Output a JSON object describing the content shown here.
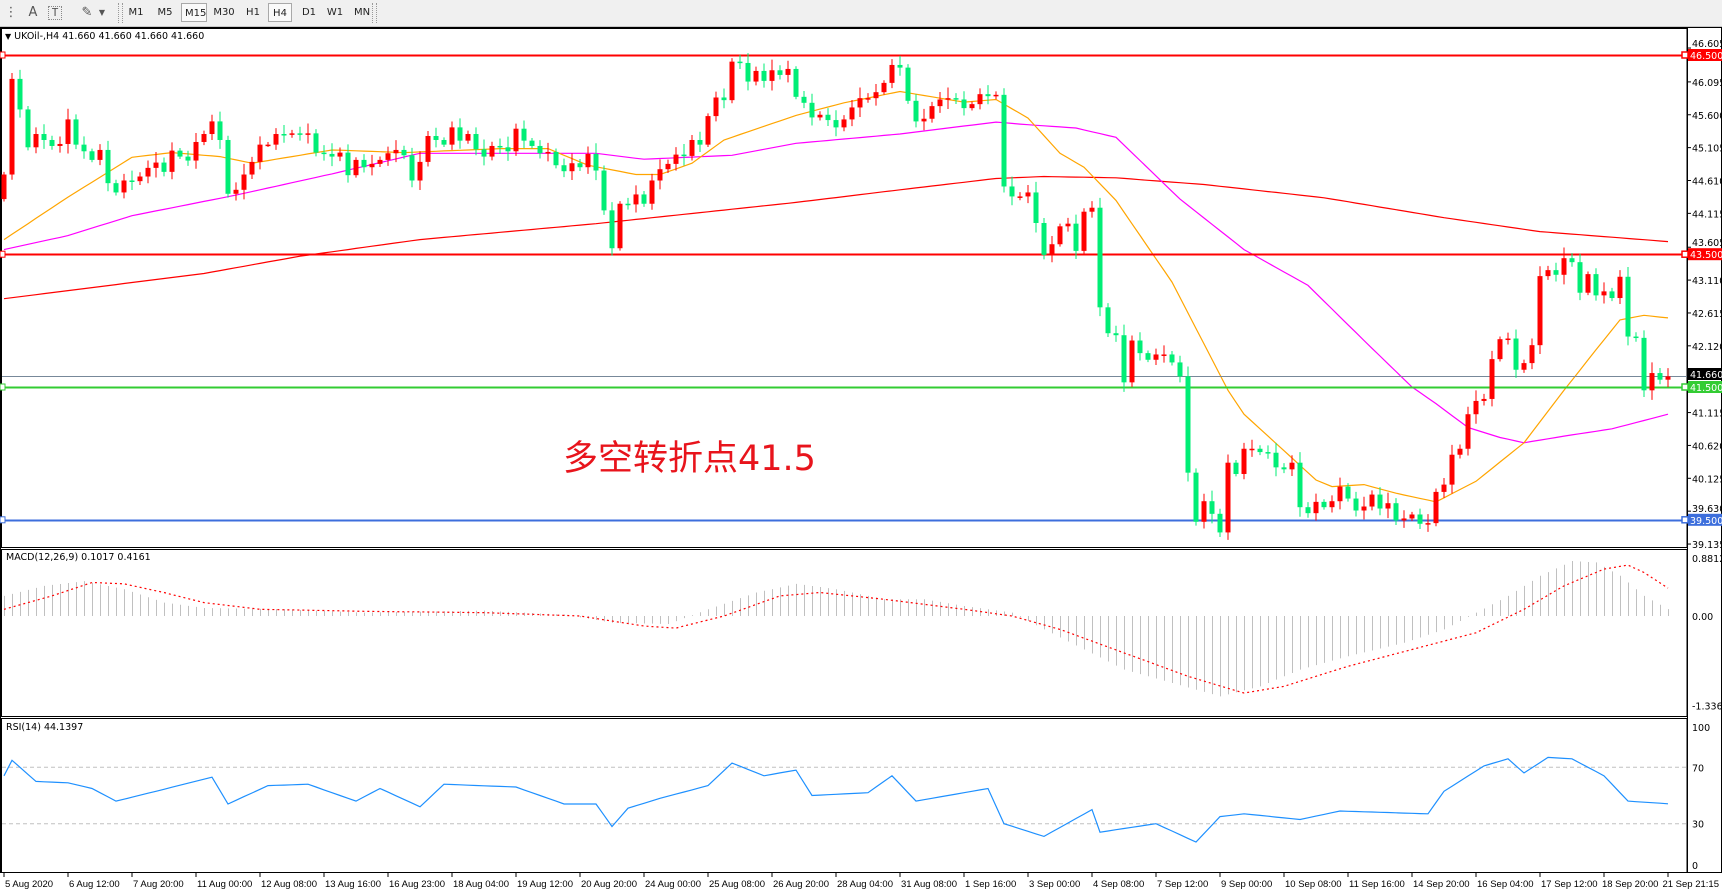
{
  "toolbar": {
    "icons": [
      "period-separator-icon",
      "text-icon",
      "text-label-icon",
      "arrows-icon",
      "dropdown-arrow-icon"
    ],
    "text_icon": "A",
    "text_label_icon": "T",
    "periods": [
      "M1",
      "M5",
      "M15",
      "M30",
      "H1",
      "H4",
      "D1",
      "W1",
      "MN"
    ],
    "active_periods": [
      "M15",
      "H4"
    ]
  },
  "chart": {
    "title": "UKOil-,H4  41.660 41.660 41.660 41.660",
    "annotation": "多空转折点41.5",
    "colors": {
      "bull": "#ff0000",
      "bear": "#00ee76",
      "ma_fast": "#ffa500",
      "ma_mid": "#ff00ff",
      "ma_slow": "#ff0000",
      "rsi": "#1e90ff",
      "macd_hist": "#c0c0c0",
      "macd_signal": "#ff0000"
    },
    "horizontal_lines": [
      {
        "price": 46.5,
        "label": "46.500",
        "color": "#ff0000"
      },
      {
        "price": 43.5,
        "label": "43.500",
        "color": "#ff0000"
      },
      {
        "price": 41.5,
        "label": "41.500",
        "color": "#33cc33"
      },
      {
        "price": 39.5,
        "label": "39.500",
        "color": "#3c6edc"
      }
    ],
    "bid_line": {
      "price": 41.66,
      "label": "41.660",
      "color": "#778899"
    },
    "price_axis": [
      "46.605",
      "46.095",
      "45.600",
      "45.105",
      "44.610",
      "44.115",
      "43.605",
      "43.110",
      "42.615",
      "42.120",
      "41.115",
      "40.620",
      "40.125",
      "39.630",
      "39.135"
    ],
    "time_axis": [
      "5 Aug 2020",
      "6 Aug 12:00",
      "7 Aug 20:00",
      "11 Aug 00:00",
      "12 Aug 08:00",
      "13 Aug 16:00",
      "16 Aug 23:00",
      "18 Aug 04:00",
      "19 Aug 12:00",
      "20 Aug 20:00",
      "24 Aug 00:00",
      "25 Aug 08:00",
      "26 Aug 20:00",
      "28 Aug 04:00",
      "31 Aug 08:00",
      "1 Sep 16:00",
      "3 Sep 00:00",
      "4 Sep 08:00",
      "7 Sep 12:00",
      "9 Sep 00:00",
      "10 Sep 08:00",
      "11 Sep 16:00",
      "14 Sep 20:00",
      "16 Sep 04:00",
      "17 Sep 12:00",
      "18 Sep 20:00",
      "21 Sep 21:15"
    ]
  },
  "chart_data": [
    {
      "type": "candlestick",
      "symbol": "UKOil-",
      "timeframe": "H4",
      "first_open": 44.33,
      "closes": [
        44.7,
        46.14,
        45.68,
        45.11,
        45.31,
        45.22,
        45.13,
        45.16,
        45.53,
        45.15,
        45.05,
        44.92,
        45.07,
        44.57,
        44.43,
        44.61,
        44.6,
        44.67,
        44.8,
        44.88,
        44.74,
        45.06,
        44.97,
        44.91,
        45.19,
        45.31,
        45.5,
        45.22,
        44.41,
        44.47,
        44.7,
        44.89,
        45.15,
        45.15,
        45.31,
        45.3,
        45.32,
        45.3,
        45.32,
        45.03,
        45.01,
        44.97,
        45.03,
        44.69,
        44.92,
        44.81,
        44.86,
        44.92,
        45.02,
        45.07,
        44.99,
        44.61,
        44.89,
        45.28,
        45.22,
        45.15,
        45.41,
        45.21,
        45.31,
        45.08,
        44.97,
        45.13,
        45.11,
        45.05,
        45.39,
        45.21,
        45.13,
        45.02,
        45.04,
        44.84,
        44.75,
        44.87,
        44.81,
        45.01,
        44.76,
        44.16,
        43.59,
        44.26,
        44.25,
        44.4,
        44.26,
        44.61,
        44.78,
        44.86,
        45.0,
        44.98,
        45.22,
        45.15,
        45.58,
        45.86,
        45.82,
        46.4,
        46.38,
        46.1,
        46.26,
        46.11,
        46.27,
        46.2,
        46.29,
        45.87,
        45.78,
        45.56,
        45.6,
        45.52,
        45.41,
        45.53,
        45.71,
        45.85,
        45.85,
        45.94,
        46.08,
        46.35,
        46.31,
        45.81,
        45.5,
        45.54,
        45.73,
        45.83,
        45.85,
        45.83,
        45.7,
        45.76,
        45.91,
        45.88,
        45.9,
        44.52,
        44.37,
        44.37,
        44.43,
        43.97,
        43.49,
        43.65,
        43.92,
        43.96,
        43.55,
        44.14,
        44.2,
        42.7,
        42.31,
        42.28,
        41.57,
        42.2,
        42.01,
        41.91,
        41.99,
        41.99,
        41.87,
        41.66,
        40.21,
        39.47,
        39.78,
        39.59,
        39.31,
        40.36,
        40.19,
        40.57,
        40.57,
        40.52,
        40.51,
        40.29,
        40.26,
        40.36,
        39.69,
        39.6,
        39.77,
        39.69,
        39.78,
        40.0,
        39.82,
        39.64,
        39.7,
        39.88,
        39.67,
        39.75,
        39.49,
        39.52,
        39.58,
        39.44,
        39.45,
        39.92,
        40.03,
        40.48,
        40.57,
        41.09,
        41.29,
        41.32,
        41.92,
        42.22,
        42.23,
        41.76,
        41.86,
        42.13,
        43.17,
        43.26,
        43.19,
        43.44,
        43.38,
        42.92,
        43.2,
        42.88,
        42.94,
        42.84,
        43.16,
        42.26,
        42.24,
        41.45,
        41.71,
        41.61,
        41.66
      ],
      "moving_averages": {
        "fast": [
          [
            0,
            43.72
          ],
          [
            8,
            44.36
          ],
          [
            16,
            44.96
          ],
          [
            21,
            45.03
          ],
          [
            27,
            44.97
          ],
          [
            31,
            44.87
          ],
          [
            41,
            45.07
          ],
          [
            50,
            45.03
          ],
          [
            62,
            45.09
          ],
          [
            68,
            45.09
          ],
          [
            73,
            44.84
          ],
          [
            79,
            44.7
          ],
          [
            82,
            44.7
          ],
          [
            86,
            44.87
          ],
          [
            90,
            45.22
          ],
          [
            99,
            45.59
          ],
          [
            105,
            45.78
          ],
          [
            112,
            45.95
          ],
          [
            120,
            45.79
          ],
          [
            124,
            45.83
          ],
          [
            128,
            45.55
          ],
          [
            132,
            45.02
          ],
          [
            135,
            44.81
          ],
          [
            139,
            44.31
          ],
          [
            146,
            43.08
          ],
          [
            153,
            41.45
          ],
          [
            155,
            41.09
          ],
          [
            158,
            40.76
          ],
          [
            164,
            40.1
          ],
          [
            166,
            40.0
          ],
          [
            170,
            40.03
          ],
          [
            174,
            39.9
          ],
          [
            179,
            39.77
          ],
          [
            184,
            40.08
          ],
          [
            190,
            40.66
          ],
          [
            195,
            41.45
          ],
          [
            199,
            42.06
          ],
          [
            202,
            42.51
          ],
          [
            205,
            42.58
          ],
          [
            208,
            42.54
          ]
        ],
        "mid": [
          [
            0,
            43.57
          ],
          [
            8,
            43.78
          ],
          [
            16,
            44.08
          ],
          [
            29,
            44.39
          ],
          [
            41,
            44.71
          ],
          [
            52,
            45.02
          ],
          [
            74,
            45.02
          ],
          [
            80,
            44.93
          ],
          [
            91,
            44.99
          ],
          [
            99,
            45.17
          ],
          [
            112,
            45.31
          ],
          [
            118,
            45.4
          ],
          [
            124,
            45.49
          ],
          [
            128,
            45.45
          ],
          [
            134,
            45.4
          ],
          [
            139,
            45.26
          ],
          [
            147,
            44.33
          ],
          [
            155,
            43.57
          ],
          [
            163,
            43.03
          ],
          [
            170,
            42.2
          ],
          [
            176,
            41.5
          ],
          [
            179,
            41.25
          ],
          [
            183,
            40.89
          ],
          [
            187,
            40.74
          ],
          [
            190,
            40.66
          ],
          [
            195,
            40.76
          ],
          [
            201,
            40.87
          ],
          [
            208,
            41.09
          ]
        ],
        "slow": [
          [
            0,
            42.83
          ],
          [
            25,
            43.21
          ],
          [
            37,
            43.47
          ],
          [
            52,
            43.72
          ],
          [
            74,
            43.96
          ],
          [
            99,
            44.28
          ],
          [
            112,
            44.47
          ],
          [
            124,
            44.64
          ],
          [
            130,
            44.67
          ],
          [
            139,
            44.65
          ],
          [
            150,
            44.55
          ],
          [
            165,
            44.35
          ],
          [
            180,
            44.05
          ],
          [
            192,
            43.84
          ],
          [
            208,
            43.69
          ]
        ]
      },
      "ylim": [
        39.135,
        46.605
      ]
    },
    {
      "type": "bar",
      "label": "MACD(12,26,9) 0.1017 0.4161",
      "axis_labels": [
        "0.8812",
        "0.00",
        "-1.3368"
      ],
      "ylim": [
        -1.3368,
        0.8812
      ],
      "histogram": [
        [
          0,
          0.3
        ],
        [
          5,
          0.45
        ],
        [
          10,
          0.52
        ],
        [
          15,
          0.4
        ],
        [
          20,
          0.2
        ],
        [
          25,
          0.12
        ],
        [
          35,
          0.1
        ],
        [
          45,
          0.05
        ],
        [
          60,
          0.08
        ],
        [
          70,
          0.02
        ],
        [
          76,
          -0.1
        ],
        [
          83,
          -0.12
        ],
        [
          88,
          0.1
        ],
        [
          94,
          0.35
        ],
        [
          99,
          0.48
        ],
        [
          104,
          0.4
        ],
        [
          110,
          0.25
        ],
        [
          115,
          0.25
        ],
        [
          120,
          0.15
        ],
        [
          126,
          0.05
        ],
        [
          130,
          -0.2
        ],
        [
          135,
          -0.5
        ],
        [
          140,
          -0.8
        ],
        [
          146,
          -1.0
        ],
        [
          152,
          -1.2
        ],
        [
          157,
          -1.05
        ],
        [
          162,
          -0.8
        ],
        [
          168,
          -0.6
        ],
        [
          175,
          -0.4
        ],
        [
          180,
          -0.2
        ],
        [
          184,
          0.05
        ],
        [
          188,
          0.3
        ],
        [
          192,
          0.6
        ],
        [
          196,
          0.82
        ],
        [
          199,
          0.8
        ],
        [
          202,
          0.6
        ],
        [
          205,
          0.3
        ],
        [
          208,
          0.1017
        ]
      ],
      "signal": [
        [
          0,
          0.1
        ],
        [
          6,
          0.3
        ],
        [
          11,
          0.5
        ],
        [
          15,
          0.48
        ],
        [
          20,
          0.35
        ],
        [
          25,
          0.2
        ],
        [
          32,
          0.1
        ],
        [
          45,
          0.07
        ],
        [
          60,
          0.05
        ],
        [
          72,
          0.0
        ],
        [
          80,
          -0.15
        ],
        [
          84,
          -0.18
        ],
        [
          90,
          0.0
        ],
        [
          97,
          0.3
        ],
        [
          102,
          0.35
        ],
        [
          110,
          0.25
        ],
        [
          120,
          0.1
        ],
        [
          126,
          0.0
        ],
        [
          132,
          -0.2
        ],
        [
          140,
          -0.55
        ],
        [
          148,
          -0.9
        ],
        [
          155,
          -1.15
        ],
        [
          160,
          -1.05
        ],
        [
          168,
          -0.75
        ],
        [
          176,
          -0.5
        ],
        [
          184,
          -0.25
        ],
        [
          190,
          0.1
        ],
        [
          195,
          0.45
        ],
        [
          200,
          0.7
        ],
        [
          203,
          0.76
        ],
        [
          205,
          0.65
        ],
        [
          208,
          0.4161
        ]
      ]
    },
    {
      "type": "line",
      "label": "RSI(14) 44.1397",
      "axis_labels": [
        "100",
        "70",
        "30",
        "0"
      ],
      "levels": [
        70,
        30
      ],
      "ylim": [
        0,
        100
      ],
      "values": [
        [
          0,
          64
        ],
        [
          1,
          75
        ],
        [
          4,
          60
        ],
        [
          8,
          59
        ],
        [
          11,
          55
        ],
        [
          14,
          46
        ],
        [
          19,
          53
        ],
        [
          26,
          63
        ],
        [
          28,
          44
        ],
        [
          33,
          57
        ],
        [
          38,
          58
        ],
        [
          44,
          46
        ],
        [
          47,
          55
        ],
        [
          52,
          42
        ],
        [
          55,
          58
        ],
        [
          64,
          56
        ],
        [
          70,
          44
        ],
        [
          74,
          44
        ],
        [
          76,
          28
        ],
        [
          78,
          41
        ],
        [
          82,
          48
        ],
        [
          88,
          57
        ],
        [
          91,
          73
        ],
        [
          95,
          64
        ],
        [
          99,
          68
        ],
        [
          101,
          50
        ],
        [
          108,
          52
        ],
        [
          111,
          64
        ],
        [
          114,
          46
        ],
        [
          123,
          55
        ],
        [
          125,
          30
        ],
        [
          130,
          21
        ],
        [
          136,
          40
        ],
        [
          137,
          24
        ],
        [
          144,
          30
        ],
        [
          149,
          17
        ],
        [
          152,
          35
        ],
        [
          155,
          37
        ],
        [
          162,
          33
        ],
        [
          167,
          39
        ],
        [
          178,
          37
        ],
        [
          180,
          53
        ],
        [
          185,
          71
        ],
        [
          188,
          76
        ],
        [
          190,
          66
        ],
        [
          193,
          77
        ],
        [
          196,
          76
        ],
        [
          200,
          64
        ],
        [
          203,
          46
        ],
        [
          208,
          44.1397
        ]
      ]
    }
  ]
}
